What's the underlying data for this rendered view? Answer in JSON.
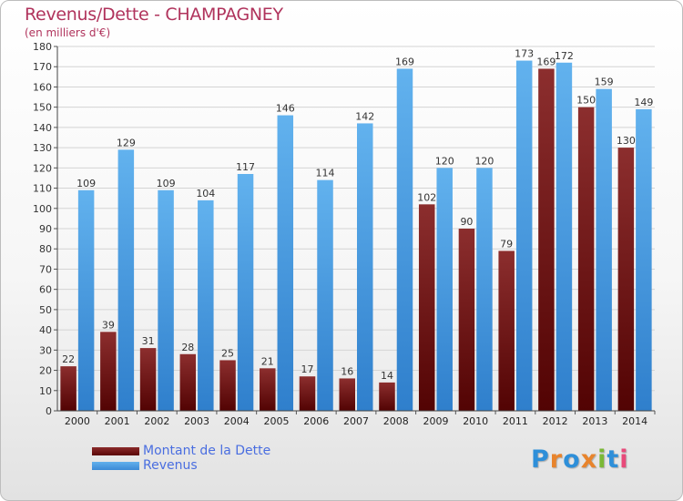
{
  "header": {
    "title": "Revenus/Dette - CHAMPAGNEY",
    "subtitle": "(en milliers d'€)"
  },
  "legend": {
    "items": [
      {
        "label": "Montant de la Dette",
        "color": "#7a1f1f"
      },
      {
        "label": "Revenus",
        "color": "#4fa3e6"
      }
    ]
  },
  "logo": {
    "text": "Proxiti",
    "letter_colors": [
      "#2e8fd9",
      "#e8842c",
      "#2e8fd9",
      "#e8842c",
      "#7ab836",
      "#2e8fd9",
      "#e84a7a"
    ]
  },
  "chart_data": {
    "type": "bar",
    "title": "Revenus/Dette - CHAMPAGNEY",
    "ylabel": "(en milliers d'€)",
    "xlabel": "",
    "categories": [
      "2000",
      "2001",
      "2002",
      "2003",
      "2004",
      "2005",
      "2006",
      "2007",
      "2008",
      "2009",
      "2010",
      "2011",
      "2012",
      "2013",
      "2014"
    ],
    "series": [
      {
        "name": "Montant de la Dette",
        "color": "#7a1f1f",
        "values": [
          22,
          39,
          31,
          28,
          25,
          21,
          17,
          16,
          14,
          102,
          90,
          79,
          169,
          150,
          130
        ]
      },
      {
        "name": "Revenus",
        "color": "#4fa3e6",
        "values": [
          109,
          129,
          109,
          104,
          117,
          146,
          114,
          142,
          169,
          120,
          120,
          173,
          172,
          159,
          149
        ]
      }
    ],
    "ylim": [
      0,
      180
    ],
    "ytick_step": 10,
    "grid": true,
    "legend_position": "bottom-left"
  }
}
